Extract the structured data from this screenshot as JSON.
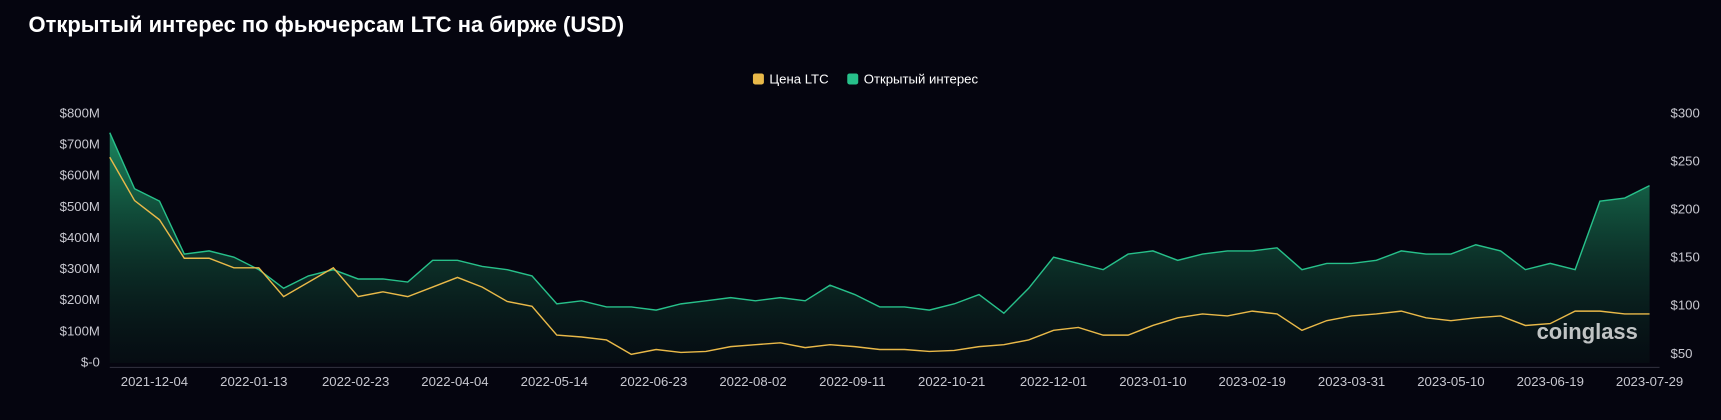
{
  "chart_data": {
    "type": "line",
    "title": "Открытый интерес по фьючерсам LTC на бирже (USD)",
    "watermark": "coinglass",
    "x": [
      "2021-11-16",
      "2021-11-26",
      "2021-12-06",
      "2021-12-16",
      "2021-12-26",
      "2022-01-05",
      "2022-01-15",
      "2022-01-25",
      "2022-02-04",
      "2022-02-14",
      "2022-02-24",
      "2022-03-06",
      "2022-03-16",
      "2022-03-26",
      "2022-04-05",
      "2022-04-15",
      "2022-04-25",
      "2022-05-05",
      "2022-05-15",
      "2022-05-25",
      "2022-06-04",
      "2022-06-14",
      "2022-06-24",
      "2022-07-04",
      "2022-07-14",
      "2022-07-24",
      "2022-08-03",
      "2022-08-13",
      "2022-08-23",
      "2022-09-02",
      "2022-09-12",
      "2022-09-22",
      "2022-10-02",
      "2022-10-12",
      "2022-10-22",
      "2022-11-01",
      "2022-11-11",
      "2022-11-21",
      "2022-12-01",
      "2022-12-11",
      "2022-12-21",
      "2022-12-31",
      "2023-01-10",
      "2023-01-20",
      "2023-01-30",
      "2023-02-09",
      "2023-02-19",
      "2023-03-01",
      "2023-03-11",
      "2023-03-21",
      "2023-03-31",
      "2023-04-10",
      "2023-04-20",
      "2023-04-30",
      "2023-05-10",
      "2023-05-20",
      "2023-05-30",
      "2023-06-09",
      "2023-06-19",
      "2023-06-29",
      "2023-07-09",
      "2023-07-19",
      "2023-07-29"
    ],
    "xlim": [
      "2021-11-16",
      "2023-08-02"
    ],
    "xticks": [
      "2021-12-04",
      "2022-01-13",
      "2022-02-23",
      "2022-04-04",
      "2022-05-14",
      "2022-06-23",
      "2022-08-02",
      "2022-09-11",
      "2022-10-21",
      "2022-12-01",
      "2023-01-10",
      "2023-02-19",
      "2023-03-31",
      "2023-05-10",
      "2023-06-19",
      "2023-07-29"
    ],
    "ylim": [
      0,
      800
    ],
    "yticks": [
      {
        "value": 0,
        "label": "$-0"
      },
      {
        "value": 100,
        "label": "$100M"
      },
      {
        "value": 200,
        "label": "$200M"
      },
      {
        "value": 300,
        "label": "$300M"
      },
      {
        "value": 400,
        "label": "$400M"
      },
      {
        "value": 500,
        "label": "$500M"
      },
      {
        "value": 600,
        "label": "$600M"
      },
      {
        "value": 700,
        "label": "$700M"
      },
      {
        "value": 800,
        "label": "$800M"
      }
    ],
    "y2lim": [
      41,
      300
    ],
    "y2ticks": [
      {
        "value": 50,
        "label": "$50"
      },
      {
        "value": 100,
        "label": "$100"
      },
      {
        "value": 150,
        "label": "$150"
      },
      {
        "value": 200,
        "label": "$200"
      },
      {
        "value": 250,
        "label": "$250"
      },
      {
        "value": 300,
        "label": "$300"
      }
    ],
    "series": [
      {
        "name": "Цена LTC",
        "color": "#e9b949",
        "axis": "y2",
        "values": [
          255,
          210,
          190,
          150,
          150,
          140,
          140,
          110,
          125,
          140,
          110,
          115,
          110,
          120,
          130,
          120,
          105,
          100,
          70,
          68,
          65,
          50,
          55,
          52,
          53,
          58,
          60,
          62,
          57,
          60,
          58,
          55,
          55,
          53,
          54,
          58,
          60,
          65,
          75,
          78,
          70,
          70,
          80,
          88,
          92,
          90,
          95,
          92,
          75,
          85,
          90,
          92,
          95,
          88,
          85,
          88,
          90,
          80,
          82,
          95,
          95,
          92,
          92
        ]
      },
      {
        "name": "Открытый интерес",
        "color": "#27c08a",
        "area": true,
        "values": [
          740,
          560,
          520,
          350,
          360,
          340,
          300,
          240,
          280,
          300,
          270,
          270,
          260,
          330,
          330,
          310,
          300,
          280,
          190,
          200,
          180,
          180,
          170,
          190,
          200,
          210,
          200,
          210,
          200,
          250,
          220,
          180,
          180,
          170,
          190,
          220,
          160,
          240,
          340,
          320,
          300,
          350,
          360,
          330,
          350,
          360,
          360,
          370,
          300,
          320,
          320,
          330,
          360,
          350,
          350,
          380,
          360,
          300,
          320,
          300,
          520,
          530,
          570
        ]
      }
    ]
  }
}
